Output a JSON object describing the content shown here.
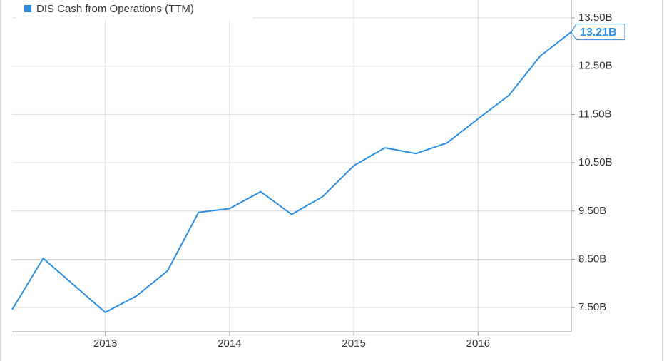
{
  "chart_data": {
    "type": "line",
    "x": [
      2012.25,
      2012.5,
      2012.75,
      2013,
      2013.25,
      2013.5,
      2013.75,
      2014,
      2014.25,
      2014.5,
      2014.75,
      2015,
      2015.25,
      2015.5,
      2015.75,
      2016,
      2016.25,
      2016.5,
      2016.75
    ],
    "series": [
      {
        "name": "DIS Cash from Operations (TTM)",
        "color": "#2b8ee3",
        "values": [
          7.46,
          8.52,
          7.96,
          7.4,
          7.74,
          8.26,
          9.47,
          9.55,
          9.9,
          9.43,
          9.8,
          10.44,
          10.81,
          10.69,
          10.91,
          11.41,
          11.9,
          12.71,
          13.21
        ],
        "value_labels": [
          null,
          null,
          null,
          null,
          null,
          null,
          null,
          null,
          null,
          null,
          null,
          null,
          null,
          null,
          null,
          null,
          null,
          null,
          "13.21B"
        ]
      }
    ],
    "xlim": [
      2012.25,
      2016.75
    ],
    "xticks": [
      2013,
      2014,
      2015,
      2016
    ],
    "ylim": [
      7.0,
      13.87
    ],
    "yticks": [
      {
        "value": 7.5,
        "label": "7.50B"
      },
      {
        "value": 8.5,
        "label": "8.50B"
      },
      {
        "value": 9.5,
        "label": "9.50B"
      },
      {
        "value": 10.5,
        "label": "10.50B"
      },
      {
        "value": 11.5,
        "label": "11.50B"
      },
      {
        "value": 12.5,
        "label": "12.50B"
      },
      {
        "value": 13.5,
        "label": "13.50B"
      }
    ],
    "grid": true,
    "legend": "top-left"
  }
}
